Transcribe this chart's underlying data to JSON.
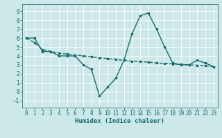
{
  "xlabel": "Humidex (Indice chaleur)",
  "ylabel": "",
  "bg_color": "#cce8e8",
  "grid_color": "#ffffff",
  "line_color": "#1a6b6b",
  "xlim": [
    -0.5,
    23.5
  ],
  "ylim": [
    -1.8,
    9.8
  ],
  "xticks": [
    0,
    1,
    2,
    3,
    4,
    5,
    6,
    7,
    8,
    9,
    10,
    11,
    12,
    13,
    14,
    15,
    16,
    17,
    18,
    19,
    20,
    21,
    22,
    23
  ],
  "yticks": [
    -1,
    0,
    1,
    2,
    3,
    4,
    5,
    6,
    7,
    8,
    9
  ],
  "line1_x": [
    0,
    1,
    2,
    3,
    4,
    5,
    6,
    7,
    8,
    9,
    10,
    11,
    12,
    13,
    14,
    15,
    16,
    17,
    18,
    19,
    20,
    21,
    22,
    23
  ],
  "line1_y": [
    6.0,
    6.0,
    4.5,
    4.5,
    4.0,
    4.0,
    4.0,
    3.0,
    2.5,
    -0.5,
    0.5,
    1.5,
    3.5,
    6.5,
    8.5,
    8.8,
    7.0,
    5.0,
    3.2,
    3.0,
    3.0,
    3.5,
    3.2,
    2.8
  ],
  "line2_x": [
    0,
    1,
    2,
    3,
    4,
    5,
    6,
    7,
    8,
    9,
    10,
    11,
    12,
    13,
    14,
    15,
    16,
    17,
    18,
    19,
    20,
    21,
    22,
    23
  ],
  "line2_y": [
    6.0,
    5.5,
    4.7,
    4.5,
    4.3,
    4.2,
    4.1,
    4.0,
    3.9,
    3.8,
    3.7,
    3.6,
    3.5,
    3.4,
    3.35,
    3.3,
    3.2,
    3.15,
    3.1,
    3.05,
    3.0,
    2.95,
    2.9,
    2.8
  ],
  "xlabel_fontsize": 6.5,
  "tick_fontsize": 5.5,
  "linewidth": 1.0,
  "markersize": 2.0
}
